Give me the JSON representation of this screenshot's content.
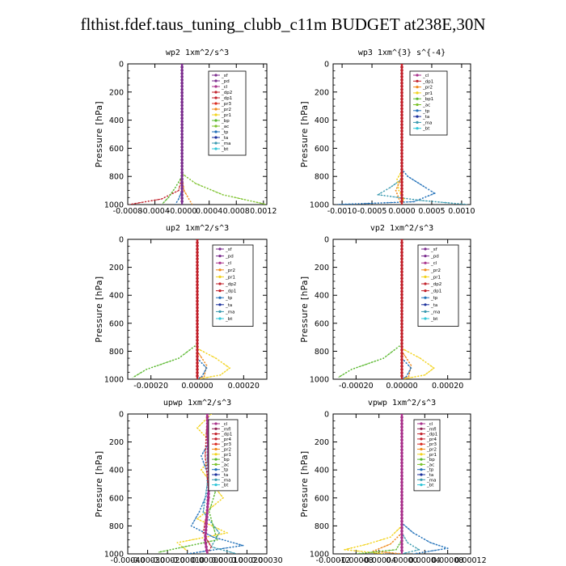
{
  "page": {
    "title": "flthist.fdef.taus_tuning_clubb_c11m  BUDGET at238E,30N"
  },
  "colors": {
    "sf": "#7b2d8e",
    "pd": "#7b2d8e",
    "cl": "#a82f8a",
    "mfl": "#8e1f52",
    "dp1": "#c2202a",
    "dp2": "#c2202a",
    "pr4": "#c2202a",
    "pr3": "#d9281e",
    "pr2": "#f08a1c",
    "pr1": "#f2d21a",
    "bp": "#5ab82f",
    "bp1": "#5ab82f",
    "ac": "#7cc22b",
    "tp": "#1f6fb8",
    "ta": "#1a2f9c",
    "ma": "#3a9ab0",
    "bt": "#2ec6d8"
  },
  "chart_data": [
    {
      "type": "line",
      "title": "wp2   1xm^2/s^3",
      "ylabel": "Pressure  [hPa]",
      "ylim": [
        1000,
        0
      ],
      "xlim": [
        -0.0008,
        0.00125
      ],
      "xticks": [
        "-0.0008",
        "-0.0004",
        "-0.0000",
        "0.0004",
        "0.0008",
        "0.0012"
      ],
      "xtick_values": [
        -0.0008,
        -0.0004,
        0.0,
        0.0004,
        0.0008,
        0.0012
      ],
      "yticks": [
        "0",
        "200",
        "400",
        "600",
        "800",
        "1000"
      ],
      "legend": [
        "_sf",
        "_pd",
        "_cl",
        "_dp2",
        "_dp1",
        "_pr3",
        "_pr2",
        "_pr1",
        "_bp",
        "_ac",
        "_tp",
        "_ta",
        "_ma",
        "_bt"
      ],
      "series": [
        {
          "name": "_dp1",
          "key": "dp1",
          "points": [
            [
              0,
              0
            ],
            [
              0,
              800
            ],
            [
              -5e-05,
              900
            ],
            [
              -0.0003,
              960
            ],
            [
              -0.00078,
              1000
            ]
          ]
        },
        {
          "name": "_pr2",
          "key": "pr2",
          "points": [
            [
              0,
              0
            ],
            [
              0,
              800
            ],
            [
              3e-05,
              900
            ],
            [
              0.0001,
              960
            ],
            [
              0.00015,
              1000
            ]
          ]
        },
        {
          "name": "_ac",
          "key": "ac",
          "points": [
            [
              0,
              0
            ],
            [
              0,
              780
            ],
            [
              0.0002,
              850
            ],
            [
              0.0006,
              930
            ],
            [
              0.00125,
              1000
            ]
          ]
        },
        {
          "name": "_bp",
          "key": "bp",
          "points": [
            [
              0,
              0
            ],
            [
              0,
              800
            ],
            [
              -0.0001,
              880
            ],
            [
              -0.0002,
              950
            ],
            [
              -0.0003,
              1000
            ]
          ]
        },
        {
          "name": "_tp",
          "key": "tp",
          "points": [
            [
              0,
              0
            ],
            [
              0,
              900
            ],
            [
              -5e-05,
              960
            ],
            [
              -0.0001,
              1000
            ]
          ]
        },
        {
          "name": "_sf",
          "key": "sf",
          "points": [
            [
              0,
              0
            ],
            [
              0,
              1000
            ]
          ]
        }
      ]
    },
    {
      "type": "line",
      "title": "wp3   1xm^{3} s^{-4}",
      "ylabel": "Pressure  [hPa]",
      "ylim": [
        1000,
        0
      ],
      "xlim": [
        -0.00115,
        0.00115
      ],
      "xticks": [
        "-0.0010",
        "-0.0005",
        "0.0000",
        "0.0005",
        "0.0010"
      ],
      "xtick_values": [
        -0.001,
        -0.0005,
        0.0,
        0.0005,
        0.001
      ],
      "yticks": [
        "0",
        "200",
        "400",
        "600",
        "800",
        "1000"
      ],
      "legend": [
        "_cl",
        "_dp1",
        "_pr2",
        "_pr1",
        "_bp1",
        "_ac",
        "_tp",
        "_ta",
        "_ma",
        "_bt"
      ],
      "series": [
        {
          "name": "_tp",
          "key": "tp",
          "points": [
            [
              0,
              0
            ],
            [
              0,
              750
            ],
            [
              0.0001,
              800
            ],
            [
              0.0004,
              880
            ],
            [
              0.00055,
              920
            ],
            [
              0.0002,
              980
            ],
            [
              -0.0011,
              1000
            ]
          ]
        },
        {
          "name": "_ma",
          "key": "ma",
          "points": [
            [
              0,
              0
            ],
            [
              0,
              820
            ],
            [
              -0.0002,
              880
            ],
            [
              -0.0004,
              930
            ],
            [
              0.0003,
              970
            ],
            [
              0.0011,
              1000
            ]
          ]
        },
        {
          "name": "_pr1",
          "key": "pr1",
          "points": [
            [
              0,
              0
            ],
            [
              0,
              760
            ],
            [
              -8e-05,
              820
            ],
            [
              -5e-05,
              900
            ],
            [
              3e-05,
              960
            ],
            [
              0,
              1000
            ]
          ]
        },
        {
          "name": "_pr2",
          "key": "pr2",
          "points": [
            [
              0,
              0
            ],
            [
              0,
              800
            ],
            [
              -0.0001,
              900
            ],
            [
              -3e-05,
              980
            ],
            [
              0,
              1000
            ]
          ]
        },
        {
          "name": "_dp1",
          "key": "dp1",
          "points": [
            [
              0,
              0
            ],
            [
              0,
              1000
            ]
          ]
        }
      ]
    },
    {
      "type": "line",
      "title": "up2   1xm^2/s^3",
      "ylabel": "Pressure  [hPa]",
      "ylim": [
        1000,
        0
      ],
      "xlim": [
        -0.0003,
        0.0003
      ],
      "xticks": [
        "-0.00020",
        "0.00000",
        "0.00020"
      ],
      "xtick_values": [
        -0.0002,
        0.0,
        0.0002
      ],
      "yticks": [
        "0",
        "200",
        "400",
        "600",
        "800",
        "1000"
      ],
      "legend": [
        "_sf",
        "_pd",
        "_cl",
        "_pr2",
        "_pr1",
        "_dp2",
        "_dp1",
        "_tp",
        "_ta",
        "_ma",
        "_bt"
      ],
      "series": [
        {
          "name": "_dp2",
          "key": "bp",
          "points": [
            [
              0,
              0
            ],
            [
              0,
              750
            ],
            [
              -8e-05,
              850
            ],
            [
              -0.00022,
              930
            ],
            [
              -0.00028,
              990
            ]
          ]
        },
        {
          "name": "_pr1",
          "key": "pr1",
          "points": [
            [
              0,
              0
            ],
            [
              0,
              780
            ],
            [
              8e-05,
              850
            ],
            [
              0.00014,
              920
            ],
            [
              0.0001,
              970
            ],
            [
              0,
              1000
            ]
          ]
        },
        {
          "name": "_pr2",
          "key": "pr2",
          "points": [
            [
              0,
              0
            ],
            [
              0,
              800
            ],
            [
              4e-05,
              900
            ],
            [
              3e-05,
              980
            ],
            [
              0,
              1000
            ]
          ]
        },
        {
          "name": "_ta",
          "key": "tp",
          "points": [
            [
              0,
              0
            ],
            [
              0,
              850
            ],
            [
              4e-05,
              920
            ],
            [
              2e-05,
              980
            ],
            [
              0,
              1000
            ]
          ]
        },
        {
          "name": "_sf",
          "key": "dp1",
          "points": [
            [
              0,
              0
            ],
            [
              0,
              1000
            ]
          ]
        }
      ]
    },
    {
      "type": "line",
      "title": "vp2   1xm^2/s^3",
      "ylabel": "Pressure  [hPa]",
      "ylim": [
        1000,
        0
      ],
      "xlim": [
        -0.0003,
        0.0003
      ],
      "xticks": [
        "-0.00020",
        "0.00000",
        "0.00020"
      ],
      "xtick_values": [
        -0.0002,
        0.0,
        0.0002
      ],
      "yticks": [
        "0",
        "200",
        "400",
        "600",
        "800",
        "1000"
      ],
      "legend": [
        "_sf",
        "_pd",
        "_cl",
        "_pr2",
        "_pr1",
        "_dp2",
        "_dp1",
        "_tp",
        "_ta",
        "_ma",
        "_bt"
      ],
      "series": [
        {
          "name": "_dp2",
          "key": "bp",
          "points": [
            [
              0,
              0
            ],
            [
              0,
              750
            ],
            [
              -8e-05,
              850
            ],
            [
              -0.00022,
              930
            ],
            [
              -0.00028,
              990
            ]
          ]
        },
        {
          "name": "_pr1",
          "key": "pr1",
          "points": [
            [
              0,
              0
            ],
            [
              0,
              780
            ],
            [
              8e-05,
              850
            ],
            [
              0.00014,
              920
            ],
            [
              0.0001,
              970
            ],
            [
              0,
              1000
            ]
          ]
        },
        {
          "name": "_pr2",
          "key": "pr2",
          "points": [
            [
              0,
              0
            ],
            [
              0,
              800
            ],
            [
              4e-05,
              900
            ],
            [
              3e-05,
              980
            ],
            [
              0,
              1000
            ]
          ]
        },
        {
          "name": "_ta",
          "key": "tp",
          "points": [
            [
              0,
              0
            ],
            [
              0,
              850
            ],
            [
              4e-05,
              920
            ],
            [
              2e-05,
              980
            ],
            [
              0,
              1000
            ]
          ]
        },
        {
          "name": "_sf",
          "key": "dp1",
          "points": [
            [
              0,
              0
            ],
            [
              0,
              1000
            ]
          ]
        }
      ]
    },
    {
      "type": "line",
      "title": "upwp   1xm^2/s^3",
      "ylabel": "Pressure  [hPa]",
      "ylim": [
        1000,
        0
      ],
      "xlim": [
        -0.0004,
        0.0003
      ],
      "xticks": [
        "-0.00040",
        "-0.00030",
        "-0.00020",
        "-0.00010",
        "0.00000",
        "0.00010",
        "0.00020",
        "0.00030"
      ],
      "xtick_values": [
        -0.0004,
        -0.0003,
        -0.0002,
        -0.0001,
        0.0,
        0.0001,
        0.0002,
        0.0003
      ],
      "yticks": [
        "0",
        "200",
        "400",
        "600",
        "800",
        "1000"
      ],
      "legend": [
        "_cl",
        "_mfl",
        "_dp1",
        "_pr4",
        "_pr3",
        "_pr2",
        "_pr1",
        "_bp",
        "_ac",
        "_tp",
        "_ta",
        "_ma",
        "_bt"
      ],
      "series": [
        {
          "name": "_pr1",
          "key": "pr1",
          "points": [
            [
              2e-05,
              0
            ],
            [
              -5e-05,
              100
            ],
            [
              5e-05,
              250
            ],
            [
              -3e-05,
              400
            ],
            [
              8e-05,
              600
            ],
            [
              -5e-05,
              750
            ],
            [
              0.0001,
              850
            ],
            [
              -0.00015,
              920
            ],
            [
              -0.0001,
              980
            ]
          ]
        },
        {
          "name": "_tp",
          "key": "tp",
          "points": [
            [
              0,
              0
            ],
            [
              3e-05,
              150
            ],
            [
              -3e-05,
              300
            ],
            [
              2e-05,
              500
            ],
            [
              -4e-05,
              700
            ],
            [
              -8e-05,
              800
            ],
            [
              3e-05,
              880
            ],
            [
              0.00018,
              940
            ],
            [
              -0.0001,
              1000
            ]
          ]
        },
        {
          "name": "_ma",
          "key": "ma",
          "points": [
            [
              0,
              0
            ],
            [
              0,
              500
            ],
            [
              -2e-05,
              700
            ],
            [
              6e-05,
              850
            ],
            [
              2e-05,
              950
            ],
            [
              0.00015,
              1000
            ]
          ]
        },
        {
          "name": "_bp",
          "key": "bp",
          "points": [
            [
              0,
              0
            ],
            [
              1e-05,
              300
            ],
            [
              4e-05,
              560
            ],
            [
              1e-05,
              700
            ],
            [
              5e-05,
              900
            ],
            [
              -0.00025,
              990
            ]
          ]
        },
        {
          "name": "_dp1",
          "key": "dp1",
          "points": [
            [
              0,
              0
            ],
            [
              -1e-05,
              300
            ],
            [
              1e-05,
              600
            ],
            [
              -2e-05,
              850
            ],
            [
              2e-05,
              950
            ],
            [
              0,
              1000
            ]
          ]
        },
        {
          "name": "_cl",
          "key": "cl",
          "points": [
            [
              0,
              0
            ],
            [
              1e-05,
              500
            ],
            [
              -1e-05,
              900
            ],
            [
              0,
              1000
            ]
          ]
        }
      ]
    },
    {
      "type": "line",
      "title": "vpwp   1xm^2/s^3",
      "ylabel": "Pressure  [hPa]",
      "ylim": [
        1000,
        0
      ],
      "xlim": [
        -0.00012,
        0.00012
      ],
      "xticks": [
        "-0.00012",
        "-0.00008",
        "-0.00004",
        "0.00000",
        "0.00004",
        "0.00008",
        "0.00012"
      ],
      "xtick_values": [
        -0.00012,
        -8e-05,
        -4e-05,
        0.0,
        4e-05,
        8e-05,
        0.00012
      ],
      "yticks": [
        "0",
        "200",
        "400",
        "600",
        "800",
        "1000"
      ],
      "legend": [
        "_cl",
        "_mfl",
        "_dp1",
        "_pr4",
        "_pr3",
        "_pr2",
        "_pr1",
        "_bp",
        "_ac",
        "_tp",
        "_ta",
        "_ma",
        "_bt"
      ],
      "series": [
        {
          "name": "_pr1",
          "key": "pr1",
          "points": [
            [
              0,
              0
            ],
            [
              0,
              800
            ],
            [
              -2e-05,
              880
            ],
            [
              -6e-05,
              930
            ],
            [
              -0.0001,
              970
            ],
            [
              -3e-05,
              1000
            ]
          ]
        },
        {
          "name": "_pr2",
          "key": "pr2",
          "points": [
            [
              0,
              0
            ],
            [
              0,
              850
            ],
            [
              -2e-05,
              930
            ],
            [
              -5e-05,
              980
            ],
            [
              0,
              1000
            ]
          ]
        },
        {
          "name": "_tp",
          "key": "tp",
          "points": [
            [
              0,
              0
            ],
            [
              0,
              780
            ],
            [
              2e-05,
              850
            ],
            [
              5e-05,
              920
            ],
            [
              8e-05,
              960
            ],
            [
              2e-05,
              1000
            ]
          ]
        },
        {
          "name": "_ma",
          "key": "ma",
          "points": [
            [
              0,
              0
            ],
            [
              0,
              850
            ],
            [
              1e-05,
              920
            ],
            [
              3e-05,
              970
            ],
            [
              0,
              1000
            ]
          ]
        },
        {
          "name": "_bp",
          "key": "bp",
          "points": [
            [
              0,
              0
            ],
            [
              0,
              900
            ],
            [
              -1e-05,
              970
            ],
            [
              -8e-05,
              1000
            ]
          ]
        },
        {
          "name": "_cl",
          "key": "cl",
          "points": [
            [
              0,
              0
            ],
            [
              0,
              1000
            ]
          ]
        }
      ]
    }
  ]
}
